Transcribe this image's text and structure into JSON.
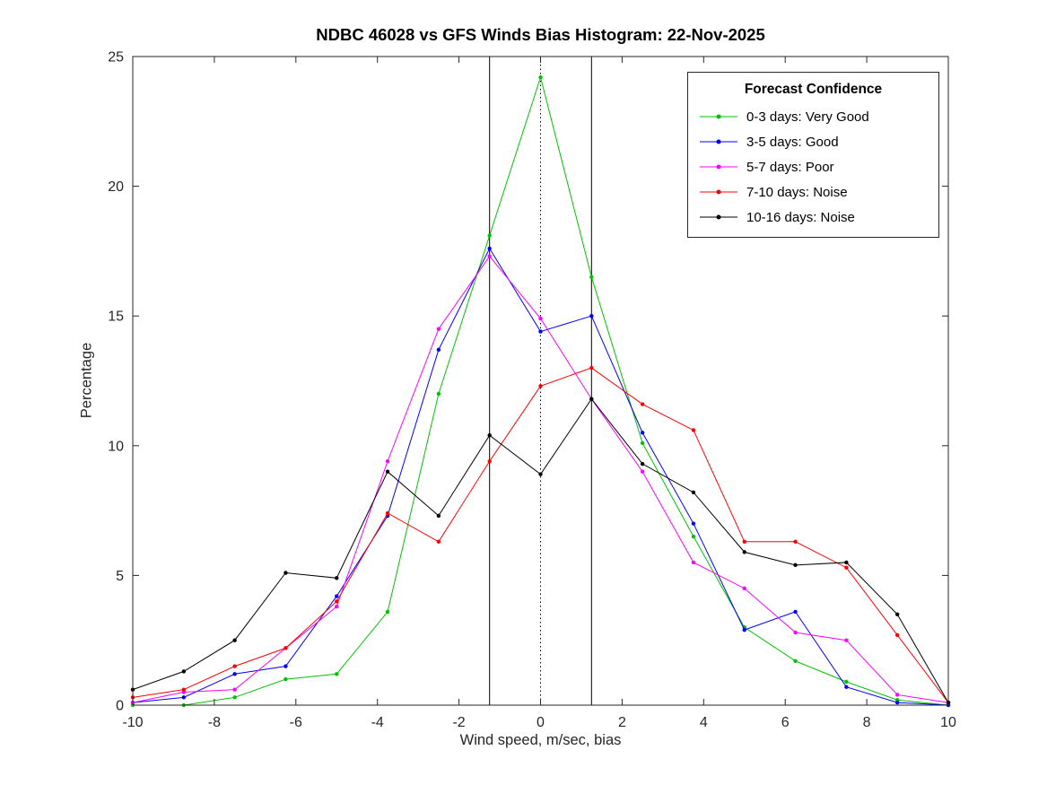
{
  "chart_data": {
    "type": "line",
    "title": "NDBC 46028 vs GFS Winds Bias Histogram: 22-Nov-2025",
    "xlabel": "Wind speed, m/sec, bias",
    "ylabel": "Percentage",
    "xlim": [
      -10,
      10
    ],
    "ylim": [
      0,
      25
    ],
    "xticks": [
      -10,
      -8,
      -6,
      -4,
      -2,
      0,
      2,
      4,
      6,
      8,
      10
    ],
    "yticks": [
      0,
      5,
      10,
      15,
      20,
      25
    ],
    "grid": false,
    "legend_title": "Forecast Confidence",
    "legend_position": "top-right",
    "axis_color": "#262626",
    "marker": "dot",
    "x": [
      -10,
      -8.75,
      -7.5,
      -6.25,
      -5,
      -3.75,
      -2.5,
      -1.25,
      0,
      1.25,
      2.5,
      3.75,
      5,
      6.25,
      7.5,
      8.75,
      10
    ],
    "series": [
      {
        "name": "0-3 days: Very Good",
        "color": "#00c300",
        "values": [
          0,
          0,
          0.3,
          1.0,
          1.2,
          3.6,
          12.0,
          18.1,
          24.2,
          16.5,
          10.1,
          6.5,
          3.0,
          1.7,
          0.9,
          0.2,
          0
        ]
      },
      {
        "name": "3-5 days: Good",
        "color": "#0000ff",
        "values": [
          0.1,
          0.3,
          1.2,
          1.5,
          4.2,
          7.3,
          13.7,
          17.6,
          14.4,
          15.0,
          10.5,
          7.0,
          2.9,
          3.6,
          0.7,
          0.1,
          0
        ]
      },
      {
        "name": "5-7 days: Poor",
        "color": "#ff00ff",
        "values": [
          0.1,
          0.5,
          0.6,
          2.2,
          3.8,
          9.4,
          14.5,
          17.3,
          14.9,
          11.8,
          9.0,
          5.5,
          4.5,
          2.8,
          2.5,
          0.4,
          0.1
        ]
      },
      {
        "name": "7-10 days: Noise",
        "color": "#ff0000",
        "values": [
          0.3,
          0.6,
          1.5,
          2.2,
          4.0,
          7.4,
          6.3,
          9.4,
          12.3,
          13.0,
          11.6,
          10.6,
          6.3,
          6.3,
          5.3,
          2.7,
          0.1
        ]
      },
      {
        "name": "10-16 days: Noise",
        "color": "#000000",
        "values": [
          0.6,
          1.3,
          2.5,
          5.1,
          4.9,
          9.0,
          7.3,
          10.4,
          8.9,
          11.8,
          9.3,
          8.2,
          5.9,
          5.4,
          5.5,
          3.5,
          0.1
        ]
      }
    ],
    "vlines": [
      {
        "x": -1.25,
        "style": "solid",
        "color": "#000000"
      },
      {
        "x": 0,
        "style": "dotted",
        "color": "#000000"
      },
      {
        "x": 1.25,
        "style": "solid",
        "color": "#000000"
      }
    ]
  }
}
